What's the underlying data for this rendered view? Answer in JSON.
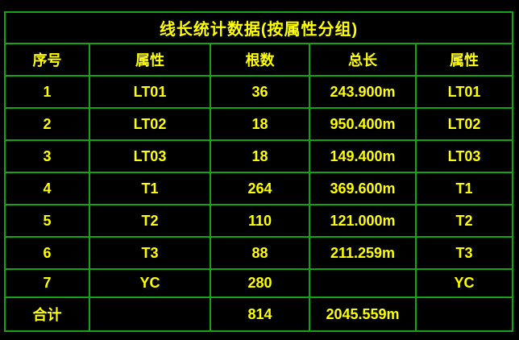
{
  "colors": {
    "background": "#000000",
    "grid": "#14a314",
    "text": "#ffff00"
  },
  "table": {
    "title": "线长统计数据(按属性分组)",
    "columns": [
      "序号",
      "属性",
      "根数",
      "总长",
      "属性"
    ],
    "rows": [
      [
        "1",
        "LT01",
        "36",
        "243.900m",
        "LT01"
      ],
      [
        "2",
        "LT02",
        "18",
        "950.400m",
        "LT02"
      ],
      [
        "3",
        "LT03",
        "18",
        "149.400m",
        "LT03"
      ],
      [
        "4",
        "T1",
        "264",
        "369.600m",
        "T1"
      ],
      [
        "5",
        "T2",
        "110",
        "121.000m",
        "T2"
      ],
      [
        "6",
        "T3",
        "88",
        "211.259m",
        "T3"
      ],
      [
        "7",
        "YC",
        "280",
        "",
        "YC"
      ],
      [
        "合计",
        "",
        "814",
        "2045.559m",
        ""
      ]
    ],
    "total_row_label": "合计",
    "unit_suffix": "m"
  }
}
